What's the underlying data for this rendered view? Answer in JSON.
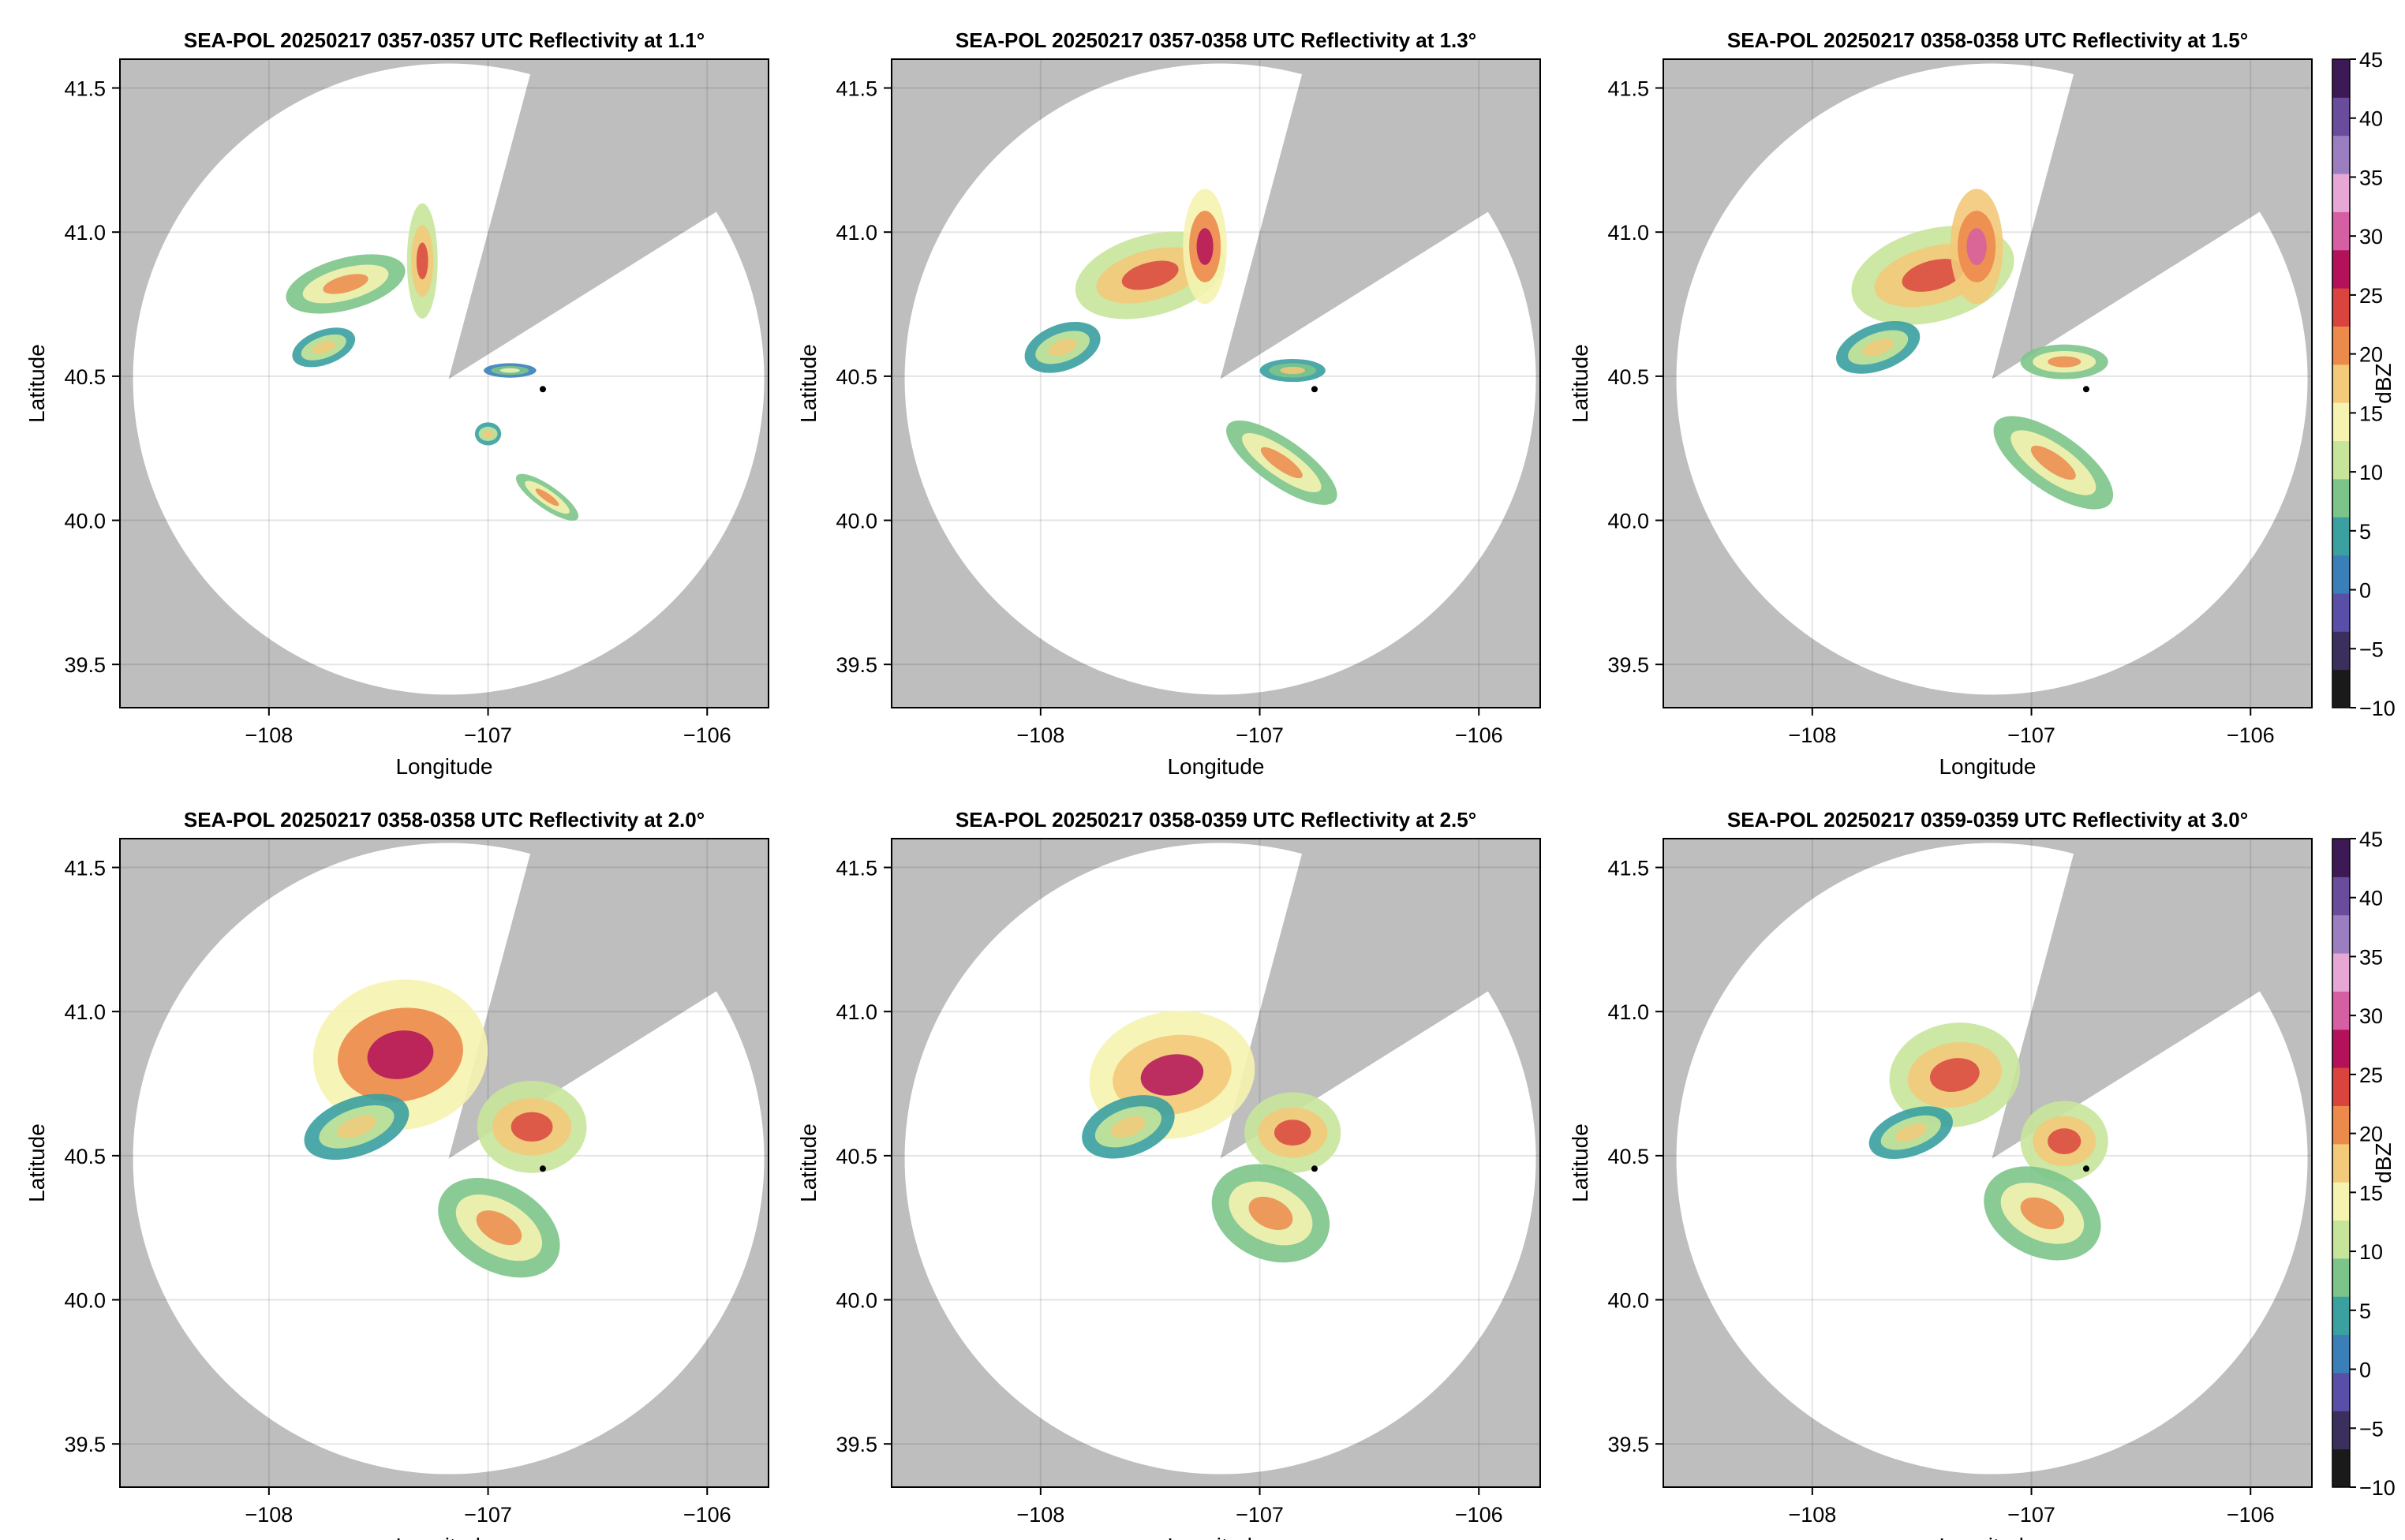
{
  "figure": {
    "colorbar_label": "dBZ",
    "colorbar_ticks": [
      -10,
      -5,
      0,
      5,
      10,
      15,
      20,
      25,
      30,
      35,
      40,
      45
    ],
    "colorbar_range": [
      -10,
      45
    ],
    "colormap": [
      "#1a1a1a",
      "#3b2f5e",
      "#5a4fa8",
      "#3a7fb8",
      "#3aa0a0",
      "#7cc48a",
      "#c6e59a",
      "#f6f3b0",
      "#f3c97a",
      "#ec8a4c",
      "#d9453e",
      "#b3125a",
      "#d65ea3",
      "#e6a7d4",
      "#9b7ec0",
      "#6a4c9c",
      "#3d1a55"
    ],
    "masked_color": "#bebebe",
    "radar_location": {
      "lon": -107.18,
      "lat": 40.49
    },
    "marker_location": {
      "lon": -106.75,
      "lat": 40.455
    }
  },
  "chart_data": [
    {
      "type": "heatmap",
      "title": "SEA-POL 20250217 0357-0357 UTC Reflectivity at 1.1°",
      "xlabel": "Longitude",
      "ylabel": "Latitude",
      "xlim": [
        -108.68,
        -105.72
      ],
      "ylim": [
        39.35,
        41.6
      ],
      "xticks": [
        -108,
        -107,
        -106
      ],
      "xtick_labels": [
        "−108",
        "−107",
        "−106"
      ],
      "yticks": [
        39.5,
        40.0,
        40.5,
        41.0,
        41.5
      ],
      "ytick_labels": [
        "39.5",
        "40.0",
        "40.5",
        "41.0",
        "41.5"
      ],
      "blocked_sector_deg": [
        15,
        58
      ],
      "echoes": [
        {
          "lon": -107.65,
          "lat": 40.82,
          "rlon": 0.28,
          "rlat": 0.09,
          "rot": -15,
          "dbz": 13
        },
        {
          "lon": -107.3,
          "lat": 40.9,
          "rlon": 0.07,
          "rlat": 0.2,
          "rot": 0,
          "dbz": 18
        },
        {
          "lon": -107.75,
          "lat": 40.6,
          "rlon": 0.15,
          "rlat": 0.06,
          "rot": -20,
          "dbz": 10
        },
        {
          "lon": -106.9,
          "lat": 40.52,
          "rlon": 0.12,
          "rlat": 0.025,
          "rot": 0,
          "dbz": 8
        },
        {
          "lon": -107.0,
          "lat": 40.3,
          "rlon": 0.06,
          "rlat": 0.04,
          "rot": 0,
          "dbz": 10
        },
        {
          "lon": -106.73,
          "lat": 40.08,
          "rlon": 0.17,
          "rlat": 0.04,
          "rot": 35,
          "dbz": 15
        }
      ]
    },
    {
      "type": "heatmap",
      "title": "SEA-POL 20250217 0357-0358 UTC Reflectivity at 1.3°",
      "xlabel": "Longitude",
      "ylabel": "Latitude",
      "xlim": [
        -108.68,
        -105.72
      ],
      "ylim": [
        39.35,
        41.6
      ],
      "xticks": [
        -108,
        -107,
        -106
      ],
      "xtick_labels": [
        "−108",
        "−107",
        "−106"
      ],
      "yticks": [
        39.5,
        40.0,
        40.5,
        41.0,
        41.5
      ],
      "ytick_labels": [
        "39.5",
        "40.0",
        "40.5",
        "41.0",
        "41.5"
      ],
      "blocked_sector_deg": [
        15,
        58
      ],
      "echoes": [
        {
          "lon": -107.5,
          "lat": 40.85,
          "rlon": 0.35,
          "rlat": 0.14,
          "rot": -15,
          "dbz": 16
        },
        {
          "lon": -107.25,
          "lat": 40.95,
          "rlon": 0.1,
          "rlat": 0.2,
          "rot": 0,
          "dbz": 20
        },
        {
          "lon": -107.9,
          "lat": 40.6,
          "rlon": 0.18,
          "rlat": 0.08,
          "rot": -20,
          "dbz": 12
        },
        {
          "lon": -106.85,
          "lat": 40.52,
          "rlon": 0.15,
          "rlat": 0.04,
          "rot": 0,
          "dbz": 9
        },
        {
          "lon": -106.9,
          "lat": 40.2,
          "rlon": 0.3,
          "rlat": 0.08,
          "rot": 35,
          "dbz": 13
        }
      ]
    },
    {
      "type": "heatmap",
      "title": "SEA-POL 20250217 0358-0358 UTC Reflectivity at 1.5°",
      "xlabel": "Longitude",
      "ylabel": "Latitude",
      "xlim": [
        -108.68,
        -105.72
      ],
      "ylim": [
        39.35,
        41.6
      ],
      "xticks": [
        -108,
        -107,
        -106
      ],
      "xtick_labels": [
        "−108",
        "−107",
        "−106"
      ],
      "yticks": [
        39.5,
        40.0,
        40.5,
        41.0,
        41.5
      ],
      "ytick_labels": [
        "39.5",
        "40.0",
        "40.5",
        "41.0",
        "41.5"
      ],
      "blocked_sector_deg": [
        15,
        58
      ],
      "echoes": [
        {
          "lon": -107.45,
          "lat": 40.85,
          "rlon": 0.38,
          "rlat": 0.16,
          "rot": -15,
          "dbz": 17
        },
        {
          "lon": -107.25,
          "lat": 40.95,
          "rlon": 0.12,
          "rlat": 0.2,
          "rot": 0,
          "dbz": 22
        },
        {
          "lon": -107.7,
          "lat": 40.6,
          "rlon": 0.2,
          "rlat": 0.08,
          "rot": -20,
          "dbz": 12
        },
        {
          "lon": -106.85,
          "lat": 40.55,
          "rlon": 0.2,
          "rlat": 0.06,
          "rot": 0,
          "dbz": 13
        },
        {
          "lon": -106.9,
          "lat": 40.2,
          "rlon": 0.32,
          "rlat": 0.1,
          "rot": 35,
          "dbz": 14
        }
      ]
    },
    {
      "type": "heatmap",
      "title": "SEA-POL 20250217 0358-0358 UTC Reflectivity at 2.0°",
      "xlabel": "Longitude",
      "ylabel": "Latitude",
      "xlim": [
        -108.68,
        -105.72
      ],
      "ylim": [
        39.35,
        41.6
      ],
      "xticks": [
        -108,
        -107,
        -106
      ],
      "xtick_labels": [
        "−108",
        "−107",
        "−106"
      ],
      "yticks": [
        39.5,
        40.0,
        40.5,
        41.0,
        41.5
      ],
      "ytick_labels": [
        "39.5",
        "40.0",
        "40.5",
        "41.0",
        "41.5"
      ],
      "blocked_sector_deg": [
        15,
        58
      ],
      "echoes": [
        {
          "lon": -107.4,
          "lat": 40.85,
          "rlon": 0.4,
          "rlat": 0.26,
          "rot": -10,
          "dbz": 20
        },
        {
          "lon": -107.6,
          "lat": 40.6,
          "rlon": 0.25,
          "rlat": 0.1,
          "rot": -20,
          "dbz": 12
        },
        {
          "lon": -106.8,
          "lat": 40.6,
          "rlon": 0.25,
          "rlat": 0.16,
          "rot": 0,
          "dbz": 17
        },
        {
          "lon": -106.95,
          "lat": 40.25,
          "rlon": 0.3,
          "rlat": 0.15,
          "rot": 30,
          "dbz": 15
        }
      ]
    },
    {
      "type": "heatmap",
      "title": "SEA-POL 20250217 0358-0359 UTC Reflectivity at 2.5°",
      "xlabel": "Longitude",
      "ylabel": "Latitude",
      "xlim": [
        -108.68,
        -105.72
      ],
      "ylim": [
        39.35,
        41.6
      ],
      "xticks": [
        -108,
        -107,
        -106
      ],
      "xtick_labels": [
        "−108",
        "−107",
        "−106"
      ],
      "yticks": [
        39.5,
        40.0,
        40.5,
        41.0,
        41.5
      ],
      "ytick_labels": [
        "39.5",
        "40.0",
        "40.5",
        "41.0",
        "41.5"
      ],
      "blocked_sector_deg": [
        15,
        58
      ],
      "echoes": [
        {
          "lon": -107.4,
          "lat": 40.78,
          "rlon": 0.38,
          "rlat": 0.22,
          "rot": -10,
          "dbz": 19
        },
        {
          "lon": -107.6,
          "lat": 40.6,
          "rlon": 0.22,
          "rlat": 0.1,
          "rot": -20,
          "dbz": 12
        },
        {
          "lon": -106.85,
          "lat": 40.58,
          "rlon": 0.22,
          "rlat": 0.14,
          "rot": 0,
          "dbz": 16
        },
        {
          "lon": -106.95,
          "lat": 40.3,
          "rlon": 0.28,
          "rlat": 0.16,
          "rot": 25,
          "dbz": 14
        }
      ]
    },
    {
      "type": "heatmap",
      "title": "SEA-POL 20250217 0359-0359 UTC Reflectivity at 3.0°",
      "xlabel": "Longitude",
      "ylabel": "Latitude",
      "xlim": [
        -108.68,
        -105.72
      ],
      "ylim": [
        39.35,
        41.6
      ],
      "xticks": [
        -108,
        -107,
        -106
      ],
      "xtick_labels": [
        "−108",
        "−107",
        "−106"
      ],
      "yticks": [
        39.5,
        40.0,
        40.5,
        41.0,
        41.5
      ],
      "ytick_labels": [
        "39.5",
        "40.0",
        "40.5",
        "41.0",
        "41.5"
      ],
      "blocked_sector_deg": [
        15,
        58
      ],
      "echoes": [
        {
          "lon": -107.35,
          "lat": 40.78,
          "rlon": 0.3,
          "rlat": 0.18,
          "rot": -10,
          "dbz": 18
        },
        {
          "lon": -107.55,
          "lat": 40.58,
          "rlon": 0.2,
          "rlat": 0.08,
          "rot": -20,
          "dbz": 11
        },
        {
          "lon": -106.85,
          "lat": 40.55,
          "rlon": 0.2,
          "rlat": 0.14,
          "rot": 0,
          "dbz": 16
        },
        {
          "lon": -106.95,
          "lat": 40.3,
          "rlon": 0.28,
          "rlat": 0.15,
          "rot": 25,
          "dbz": 14
        }
      ]
    }
  ]
}
